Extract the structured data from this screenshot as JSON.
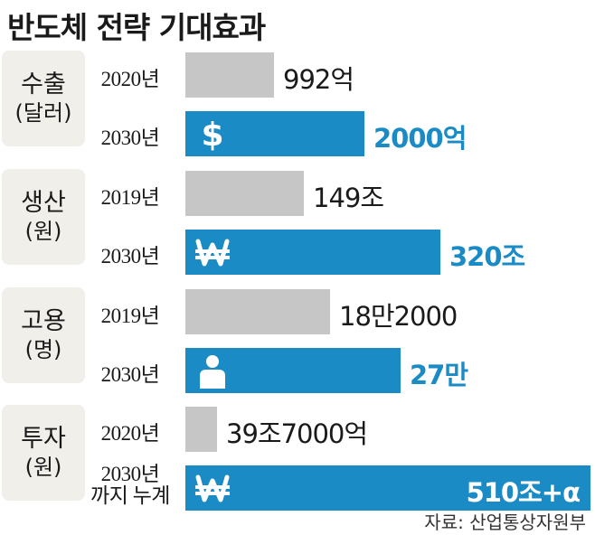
{
  "title": "반도체 전략 기대효과",
  "source": "자료: 산업통상자원부",
  "colors": {
    "old_bar": "#c6c6c6",
    "new_bar": "#1a8bc5",
    "category_box": "#f1efe9"
  },
  "chart_data": {
    "type": "bar",
    "orientation": "horizontal",
    "groups": [
      {
        "category": "수출",
        "unit": "(달러)",
        "icon": "dollar-icon",
        "rows": [
          {
            "year": "2020년",
            "value": 992,
            "label": "992억"
          },
          {
            "year": "2030년",
            "value": 2000,
            "label": "2000억"
          }
        ]
      },
      {
        "category": "생산",
        "unit": "(원)",
        "icon": "won-icon",
        "rows": [
          {
            "year": "2019년",
            "value": 149,
            "label": "149조"
          },
          {
            "year": "2030년",
            "value": 320,
            "label": "320조"
          }
        ]
      },
      {
        "category": "고용",
        "unit": "(명)",
        "icon": "person-icon",
        "rows": [
          {
            "year": "2019년",
            "value": 18.2,
            "label": "18만2000"
          },
          {
            "year": "2030년",
            "value": 27,
            "label": "27만"
          }
        ]
      },
      {
        "category": "투자",
        "unit": "(원)",
        "icon": "won-icon",
        "rows": [
          {
            "year": "2020년",
            "value": 39.7,
            "label": "39조7000억"
          },
          {
            "year": "2030년",
            "year_line2": "까지 누계",
            "value": 510,
            "label": "510조+α"
          }
        ]
      }
    ]
  }
}
